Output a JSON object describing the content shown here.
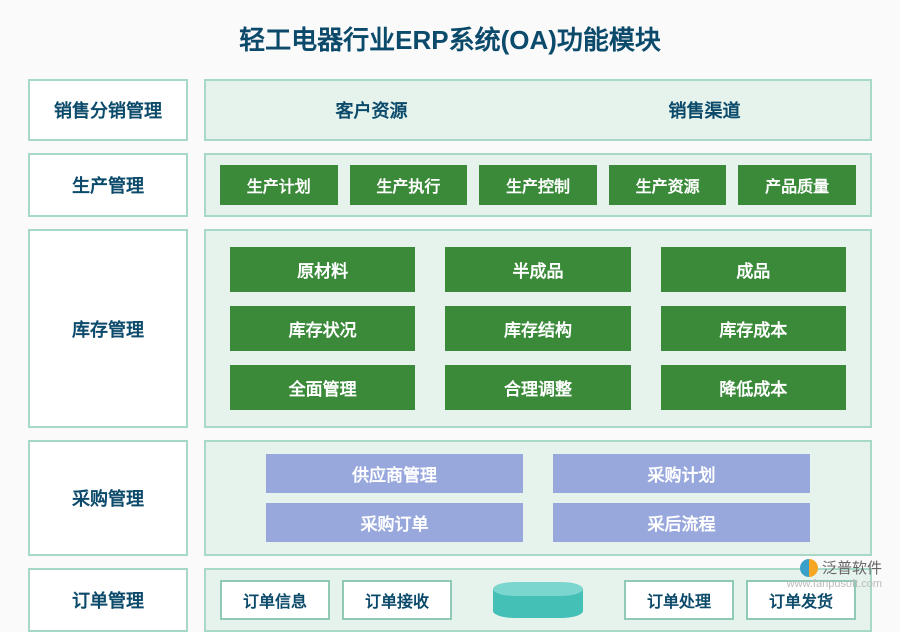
{
  "title": "轻工电器行业ERP系统(OA)功能模块",
  "colors": {
    "title_color": "#0b4a6a",
    "box_border": "#a7d8c8",
    "content_bg": "#e5f3ec",
    "dark_green": "#3a8a3a",
    "periwinkle": "#98a8dd",
    "cylinder_body": "#45c0b6",
    "cylinder_top": "#7ad6cf",
    "page_bg": "#fafafa"
  },
  "typography": {
    "title_fontsize": 26,
    "label_fontsize": 18,
    "chip_fontsize": 16
  },
  "rows": {
    "r1": {
      "label": "销售分销管理",
      "items": [
        "客户资源",
        "销售渠道"
      ]
    },
    "r2": {
      "label": "生产管理",
      "items": [
        "生产计划",
        "生产执行",
        "生产控制",
        "生产资源",
        "产品质量"
      ]
    },
    "r3": {
      "label": "库存管理",
      "lines": [
        [
          "原材料",
          "半成品",
          "成品"
        ],
        [
          "库存状况",
          "库存结构",
          "库存成本"
        ],
        [
          "全面管理",
          "合理调整",
          "降低成本"
        ]
      ]
    },
    "r4": {
      "label": "采购管理",
      "lines": [
        [
          "供应商管理",
          "采购计划"
        ],
        [
          "采购订单",
          "采后流程"
        ]
      ]
    },
    "r5": {
      "label": "订单管理",
      "left": [
        "订单信息",
        "订单接收"
      ],
      "right": [
        "订单处理",
        "订单发货"
      ]
    }
  },
  "watermark": {
    "brand": "泛普软件",
    "url": "www.fanpusoft.com"
  }
}
